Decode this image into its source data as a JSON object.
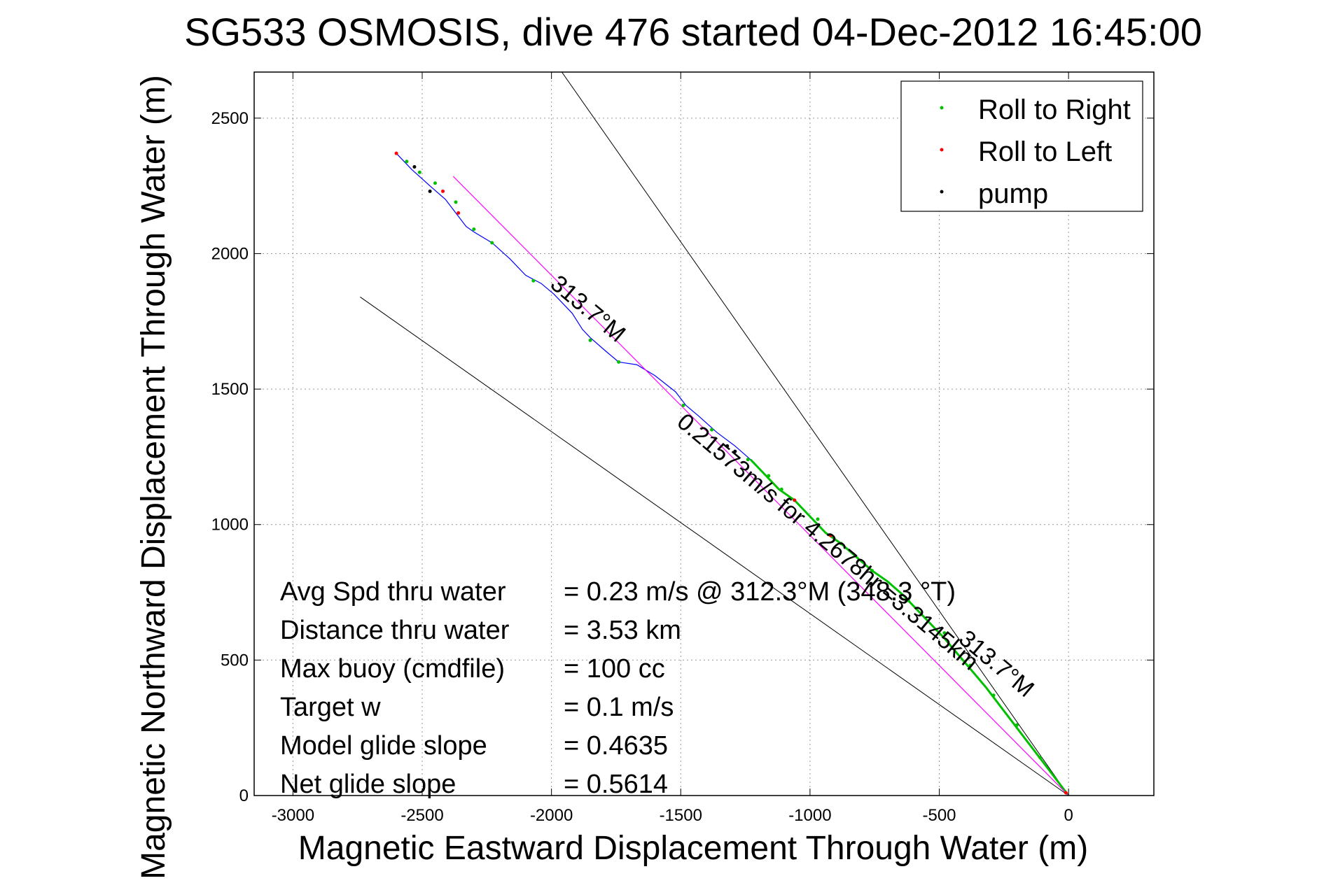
{
  "chart_data": {
    "type": "line",
    "title": "SG533 OSMOSIS, dive 476 started 04-Dec-2012 16:45:00",
    "xlabel": "Magnetic Eastward Displacement Through Water (m)",
    "ylabel": "Magnetic Northward Displacement Through Water (m)",
    "xlim": [
      -3150,
      330
    ],
    "ylim": [
      0,
      2670
    ],
    "xticks": [
      -3000,
      -2500,
      -2000,
      -1500,
      -1000,
      -500,
      0
    ],
    "yticks": [
      0,
      500,
      1000,
      1500,
      2000,
      2500
    ],
    "grid": true,
    "legend_placement": "top-right",
    "colors": {
      "roll_right": "#00c000",
      "roll_left": "#ff0000",
      "pump": "#000000",
      "track": "#0000ff",
      "mean_line": "#ff00ff",
      "guide_lines": "#000000"
    },
    "series": [
      {
        "name": "Roll to Right",
        "color": "#00c000",
        "x": [
          -2560,
          -2510,
          -2450,
          -2370,
          -2300,
          -2230,
          -2070,
          -1850,
          -1740,
          -1490,
          -1380,
          -1240,
          -1160,
          -1110,
          -970,
          -880,
          -760,
          -620,
          -480,
          -380,
          -290,
          -200,
          -110
        ],
        "y": [
          2340,
          2300,
          2260,
          2190,
          2090,
          2040,
          1900,
          1680,
          1600,
          1440,
          1350,
          1240,
          1180,
          1130,
          1020,
          930,
          830,
          720,
          600,
          480,
          370,
          260,
          140
        ]
      },
      {
        "name": "Roll to Left",
        "color": "#ff0000",
        "x": [
          -2600,
          -2420,
          -2360,
          -1060,
          -920,
          -10
        ],
        "y": [
          2370,
          2230,
          2150,
          1090,
          960,
          10
        ]
      },
      {
        "name": "pump",
        "color": "#000000",
        "x": [
          -2530,
          -2470,
          -1320,
          -1290
        ],
        "y": [
          2320,
          2230,
          1290,
          1270
        ]
      }
    ],
    "track": {
      "x": [
        -2600,
        -2540,
        -2470,
        -2410,
        -2370,
        -2330,
        -2300,
        -2230,
        -2160,
        -2100,
        -2040,
        -1990,
        -1920,
        -1880,
        -1850,
        -1790,
        -1740,
        -1670,
        -1600,
        -1520,
        -1480,
        -1430,
        -1360,
        -1290,
        -1230,
        -1170,
        -1120,
        -1060,
        -1000,
        -940,
        -880,
        -820,
        -760,
        -700,
        -640,
        -560,
        -480,
        -400,
        -320,
        -240,
        -160,
        -80,
        0
      ],
      "y": [
        2370,
        2310,
        2250,
        2200,
        2150,
        2100,
        2080,
        2040,
        1980,
        1920,
        1890,
        1850,
        1780,
        1720,
        1690,
        1640,
        1600,
        1590,
        1550,
        1490,
        1440,
        1400,
        1340,
        1290,
        1240,
        1180,
        1130,
        1090,
        1030,
        970,
        930,
        880,
        830,
        790,
        740,
        660,
        580,
        490,
        400,
        300,
        200,
        100,
        0
      ]
    },
    "mean_line": {
      "x": [
        -2380,
        0
      ],
      "y": [
        2285,
        0
      ]
    },
    "guide_lines": [
      {
        "x": [
          -1960,
          0
        ],
        "y": [
          2670,
          0
        ]
      },
      {
        "x": [
          -2740,
          0
        ],
        "y": [
          1840,
          0
        ]
      }
    ],
    "legend": [
      "Roll to Right",
      "Roll to Left",
      "pump"
    ],
    "annotations": [
      {
        "text": "313.7°M",
        "x": -2010,
        "y": 1880,
        "angle": 40
      },
      {
        "text": "0.21573m/s for 4.2678hr =3.3145km",
        "x": -1520,
        "y": 1370,
        "angle": 40
      },
      {
        "text": "313.7°M",
        "x": -430,
        "y": 570,
        "angle": 40
      }
    ],
    "stats": [
      {
        "label": "Avg Spd thru water",
        "value": "=  0.23 m/s @ 312.3°M (348.3 °T)"
      },
      {
        "label": "Distance thru water",
        "value": "=  3.53 km"
      },
      {
        "label": "Max buoy (cmdfile)",
        "value": "= 100 cc"
      },
      {
        "label": "Target w",
        "value": "= 0.1 m/s"
      },
      {
        "label": "Model glide slope",
        "value": "= 0.4635"
      },
      {
        "label": "Net glide slope",
        "value": "= 0.5614"
      }
    ]
  }
}
